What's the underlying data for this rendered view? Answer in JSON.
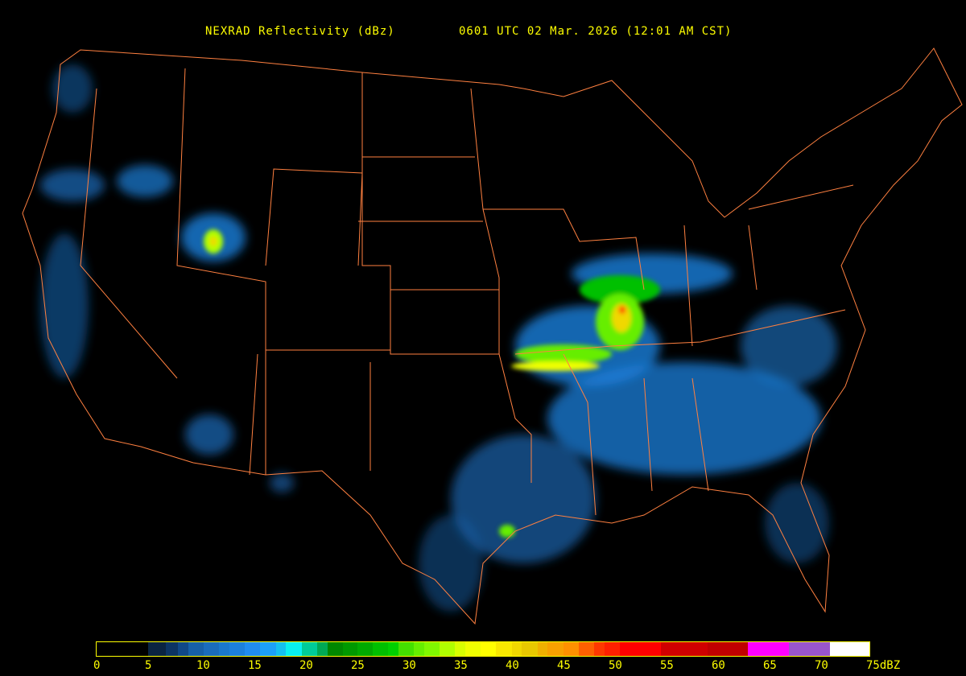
{
  "header": {
    "product": "NEXRAD Reflectivity (dBz)",
    "time": "0601 UTC 02 Mar. 2026 (12:01 AM CST)"
  },
  "legend": {
    "min": 0,
    "max": 75,
    "ticks": [
      "0",
      "5",
      "10",
      "15",
      "20",
      "25",
      "30",
      "35",
      "40",
      "45",
      "50",
      "55",
      "60",
      "65",
      "70",
      "75dBZ"
    ],
    "segments": [
      {
        "from": 0,
        "color": "#000000"
      },
      {
        "from": 5,
        "color": "#0a2442"
      },
      {
        "from": 6.7,
        "color": "#0c3464"
      },
      {
        "from": 7.9,
        "color": "#104888"
      },
      {
        "from": 8.9,
        "color": "#1660a8"
      },
      {
        "from": 10.4,
        "color": "#1a6cbc"
      },
      {
        "from": 11.9,
        "color": "#1a78cc"
      },
      {
        "from": 12.9,
        "color": "#1c80dc"
      },
      {
        "from": 14.4,
        "color": "#208cf0"
      },
      {
        "from": 15.9,
        "color": "#1ca0f8"
      },
      {
        "from": 17.4,
        "color": "#14c0f0"
      },
      {
        "from": 18.4,
        "color": "#08f0f0"
      },
      {
        "from": 19.9,
        "color": "#00cc99"
      },
      {
        "from": 21.4,
        "color": "#00aa55"
      },
      {
        "from": 22.4,
        "color": "#008800"
      },
      {
        "from": 23.9,
        "color": "#009900"
      },
      {
        "from": 25.3,
        "color": "#00aa00"
      },
      {
        "from": 26.8,
        "color": "#00c000"
      },
      {
        "from": 28.3,
        "color": "#00d000"
      },
      {
        "from": 29.3,
        "color": "#44e000"
      },
      {
        "from": 30.8,
        "color": "#66ee00"
      },
      {
        "from": 31.8,
        "color": "#80f800"
      },
      {
        "from": 33.3,
        "color": "#b0ff00"
      },
      {
        "from": 34.8,
        "color": "#d8ff00"
      },
      {
        "from": 35.8,
        "color": "#f0ff00"
      },
      {
        "from": 37.3,
        "color": "#ffff00"
      },
      {
        "from": 38.8,
        "color": "#f8e800"
      },
      {
        "from": 40.3,
        "color": "#f0d800"
      },
      {
        "from": 41.3,
        "color": "#e8c800"
      },
      {
        "from": 42.8,
        "color": "#f0b000"
      },
      {
        "from": 43.8,
        "color": "#f8a000"
      },
      {
        "from": 45.3,
        "color": "#ff9000"
      },
      {
        "from": 46.8,
        "color": "#ff6000"
      },
      {
        "from": 48.3,
        "color": "#ff3800"
      },
      {
        "from": 49.3,
        "color": "#ff2000"
      },
      {
        "from": 50.8,
        "color": "#ff0000"
      },
      {
        "from": 54.8,
        "color": "#d00000"
      },
      {
        "from": 59.3,
        "color": "#c00000"
      },
      {
        "from": 63.2,
        "color": "#ff00ff"
      },
      {
        "from": 67.2,
        "color": "#9955cc"
      },
      {
        "from": 71.2,
        "color": "#ffffff"
      }
    ]
  },
  "colors": {
    "boundaries": "#ff8040",
    "text": "#ffff00",
    "background": "#000000"
  }
}
